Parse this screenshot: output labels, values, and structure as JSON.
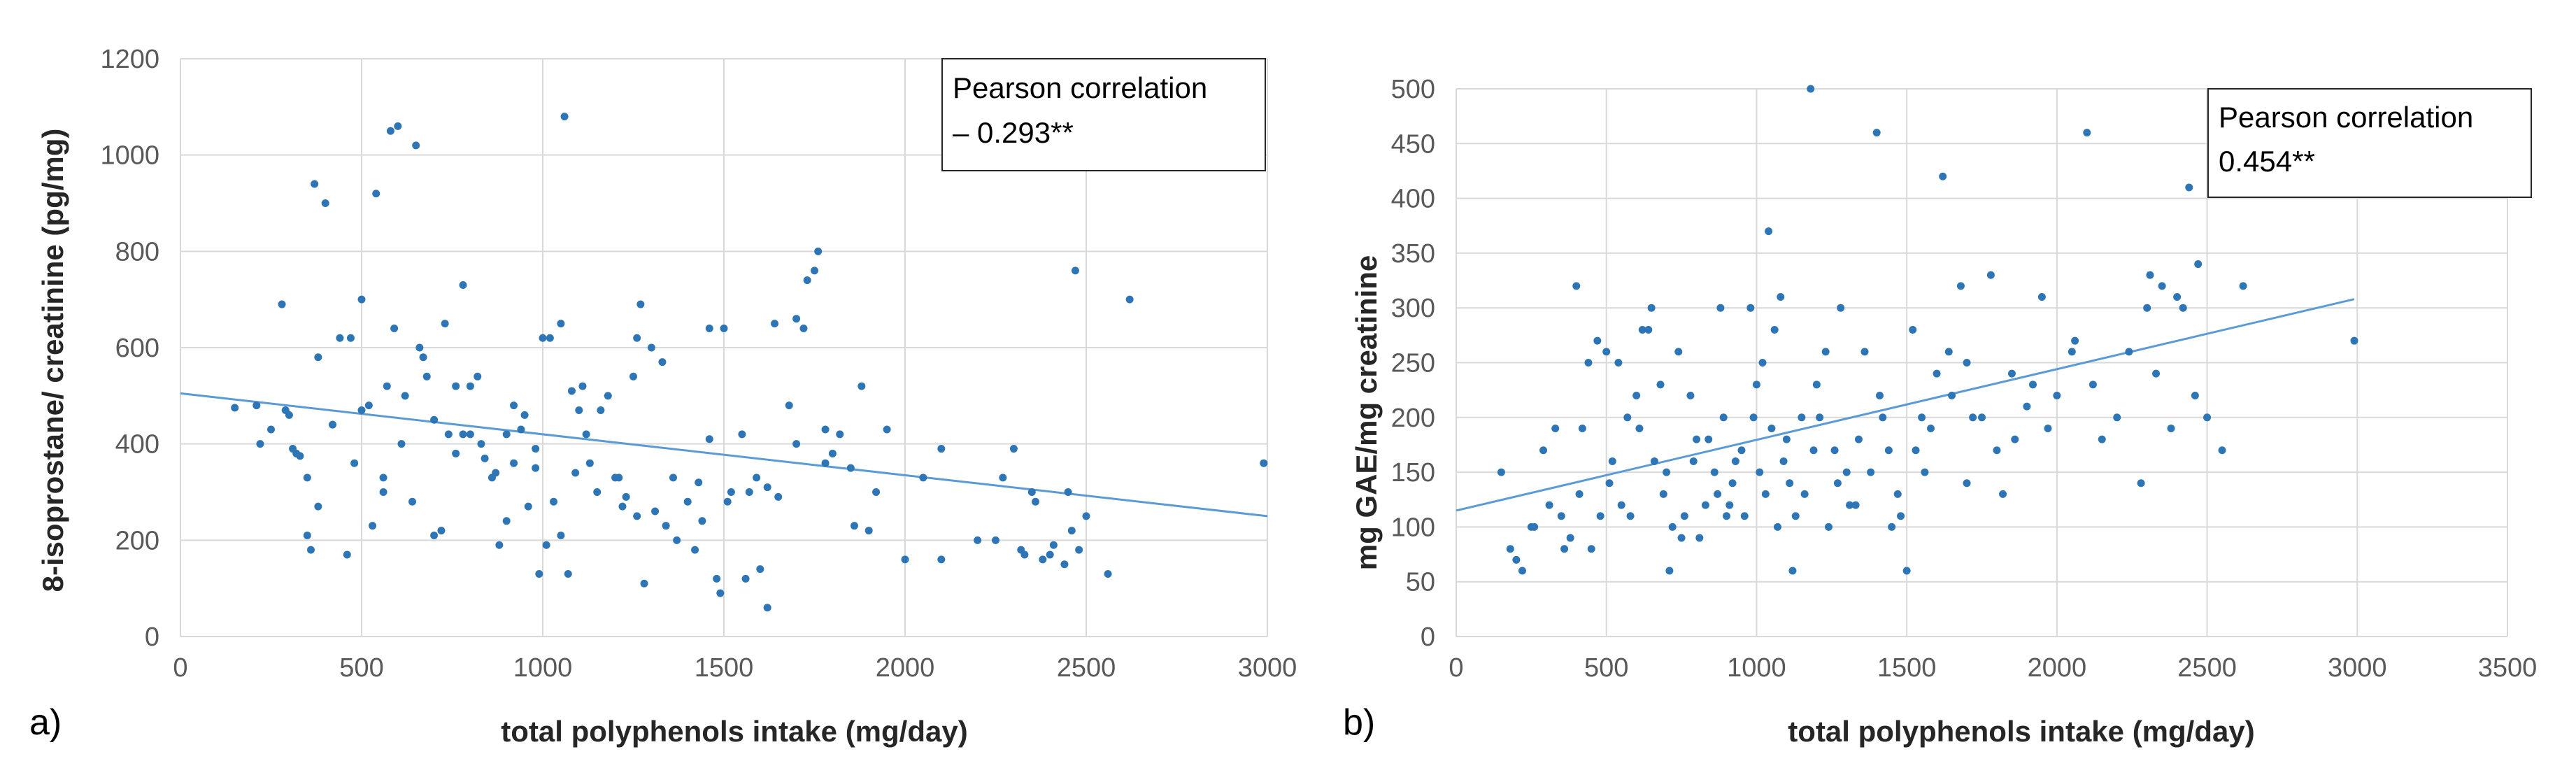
{
  "figure": {
    "point_color": "#2e75b6",
    "line_color": "#5b9bd5"
  },
  "chart_data": [
    {
      "type": "scatter",
      "panel_label": "a)",
      "title": "",
      "xlabel": "total polyphenols intake (mg/day)",
      "ylabel": "8-isoprostane/ creatinine (pg/mg)",
      "xlim": [
        0,
        3000
      ],
      "ylim": [
        0,
        1200
      ],
      "xticks": [
        "0",
        "500",
        "1000",
        "1500",
        "2000",
        "2500",
        "3000"
      ],
      "yticks": [
        "0",
        "200",
        "400",
        "600",
        "800",
        "1000",
        "1200"
      ],
      "grid": true,
      "annotation": {
        "line1": "Pearson correlation",
        "line2": "– 0.293**",
        "position": "top-right"
      },
      "trendline": {
        "x": [
          0,
          3000
        ],
        "y": [
          505,
          250
        ]
      },
      "points": [
        [
          150,
          475
        ],
        [
          210,
          480
        ],
        [
          220,
          400
        ],
        [
          280,
          690
        ],
        [
          300,
          460
        ],
        [
          310,
          390
        ],
        [
          330,
          375
        ],
        [
          350,
          330
        ],
        [
          360,
          180
        ],
        [
          380,
          580
        ],
        [
          370,
          940
        ],
        [
          400,
          900
        ],
        [
          420,
          440
        ],
        [
          440,
          620
        ],
        [
          470,
          620
        ],
        [
          480,
          360
        ],
        [
          500,
          700
        ],
        [
          520,
          480
        ],
        [
          540,
          920
        ],
        [
          560,
          300
        ],
        [
          570,
          520
        ],
        [
          580,
          1050
        ],
        [
          600,
          1060
        ],
        [
          610,
          400
        ],
        [
          650,
          1020
        ],
        [
          660,
          600
        ],
        [
          680,
          540
        ],
        [
          700,
          450
        ],
        [
          720,
          220
        ],
        [
          740,
          420
        ],
        [
          760,
          380
        ],
        [
          780,
          730
        ],
        [
          800,
          420
        ],
        [
          830,
          400
        ],
        [
          860,
          330
        ],
        [
          900,
          420
        ],
        [
          920,
          480
        ],
        [
          950,
          460
        ],
        [
          980,
          390
        ],
        [
          1000,
          620
        ],
        [
          1020,
          620
        ],
        [
          1050,
          650
        ],
        [
          1060,
          1080
        ],
        [
          1080,
          510
        ],
        [
          1100,
          470
        ],
        [
          1120,
          420
        ],
        [
          1150,
          300
        ],
        [
          1200,
          330
        ],
        [
          1220,
          270
        ],
        [
          1250,
          540
        ],
        [
          1260,
          620
        ],
        [
          1270,
          690
        ],
        [
          1300,
          600
        ],
        [
          1330,
          570
        ],
        [
          1360,
          330
        ],
        [
          1400,
          280
        ],
        [
          1420,
          180
        ],
        [
          1440,
          240
        ],
        [
          1460,
          640
        ],
        [
          1480,
          120
        ],
        [
          1500,
          640
        ],
        [
          1520,
          300
        ],
        [
          1550,
          420
        ],
        [
          1570,
          300
        ],
        [
          1600,
          140
        ],
        [
          1620,
          60
        ],
        [
          1640,
          650
        ],
        [
          1680,
          480
        ],
        [
          1700,
          400
        ],
        [
          1730,
          740
        ],
        [
          1750,
          760
        ],
        [
          1760,
          800
        ],
        [
          1780,
          430
        ],
        [
          1800,
          380
        ],
        [
          1850,
          350
        ],
        [
          1880,
          520
        ],
        [
          1920,
          300
        ],
        [
          2000,
          160
        ],
        [
          2050,
          330
        ],
        [
          2100,
          390
        ],
        [
          2200,
          200
        ],
        [
          2270,
          330
        ],
        [
          2300,
          390
        ],
        [
          2320,
          180
        ],
        [
          2350,
          300
        ],
        [
          2380,
          160
        ],
        [
          2400,
          170
        ],
        [
          2450,
          300
        ],
        [
          2470,
          760
        ],
        [
          2480,
          180
        ],
        [
          2500,
          250
        ],
        [
          2560,
          130
        ],
        [
          2620,
          700
        ],
        [
          2990,
          360
        ],
        [
          250,
          430
        ],
        [
          290,
          470
        ],
        [
          320,
          380
        ],
        [
          350,
          210
        ],
        [
          380,
          270
        ],
        [
          420,
          440
        ],
        [
          460,
          170
        ],
        [
          500,
          470
        ],
        [
          530,
          230
        ],
        [
          560,
          330
        ],
        [
          590,
          640
        ],
        [
          620,
          500
        ],
        [
          640,
          280
        ],
        [
          670,
          580
        ],
        [
          700,
          210
        ],
        [
          730,
          650
        ],
        [
          760,
          520
        ],
        [
          780,
          420
        ],
        [
          800,
          520
        ],
        [
          820,
          540
        ],
        [
          840,
          370
        ],
        [
          870,
          340
        ],
        [
          880,
          190
        ],
        [
          900,
          240
        ],
        [
          920,
          360
        ],
        [
          940,
          430
        ],
        [
          960,
          270
        ],
        [
          980,
          350
        ],
        [
          990,
          130
        ],
        [
          1010,
          190
        ],
        [
          1030,
          280
        ],
        [
          1050,
          210
        ],
        [
          1070,
          130
        ],
        [
          1090,
          340
        ],
        [
          1110,
          520
        ],
        [
          1130,
          360
        ],
        [
          1160,
          470
        ],
        [
          1180,
          500
        ],
        [
          1210,
          330
        ],
        [
          1230,
          290
        ],
        [
          1260,
          250
        ],
        [
          1280,
          110
        ],
        [
          1310,
          260
        ],
        [
          1340,
          230
        ],
        [
          1370,
          200
        ],
        [
          1430,
          320
        ],
        [
          1460,
          410
        ],
        [
          1490,
          90
        ],
        [
          1510,
          280
        ],
        [
          1560,
          120
        ],
        [
          1590,
          330
        ],
        [
          1620,
          310
        ],
        [
          1650,
          290
        ],
        [
          1700,
          660
        ],
        [
          1720,
          640
        ],
        [
          1780,
          360
        ],
        [
          1820,
          420
        ],
        [
          1860,
          230
        ],
        [
          1900,
          220
        ],
        [
          1950,
          430
        ],
        [
          2100,
          160
        ],
        [
          2250,
          200
        ],
        [
          2330,
          170
        ],
        [
          2360,
          280
        ],
        [
          2410,
          190
        ],
        [
          2440,
          150
        ],
        [
          2460,
          220
        ]
      ]
    },
    {
      "type": "scatter",
      "panel_label": "b)",
      "title": "",
      "xlabel": "total polyphenols intake (mg/day)",
      "ylabel": "mg GAE/mg creatinine",
      "xlim": [
        0,
        3500
      ],
      "ylim": [
        0,
        500
      ],
      "xticks": [
        "0",
        "500",
        "1000",
        "1500",
        "2000",
        "2500",
        "3000",
        "3500"
      ],
      "yticks": [
        "0",
        "50",
        "100",
        "150",
        "200",
        "250",
        "300",
        "350",
        "400",
        "450",
        "500"
      ],
      "grid": true,
      "annotation": {
        "line1": "Pearson correlation",
        "line2": "0.454**",
        "position": "top-right"
      },
      "trendline": {
        "x": [
          0,
          2990
        ],
        "y": [
          115,
          308
        ]
      },
      "points": [
        [
          150,
          150
        ],
        [
          180,
          80
        ],
        [
          200,
          70
        ],
        [
          220,
          60
        ],
        [
          250,
          100
        ],
        [
          290,
          170
        ],
        [
          310,
          120
        ],
        [
          350,
          110
        ],
        [
          380,
          90
        ],
        [
          400,
          320
        ],
        [
          420,
          190
        ],
        [
          440,
          250
        ],
        [
          470,
          270
        ],
        [
          500,
          260
        ],
        [
          520,
          160
        ],
        [
          550,
          120
        ],
        [
          570,
          200
        ],
        [
          600,
          220
        ],
        [
          620,
          280
        ],
        [
          650,
          300
        ],
        [
          680,
          230
        ],
        [
          700,
          150
        ],
        [
          720,
          100
        ],
        [
          750,
          90
        ],
        [
          780,
          220
        ],
        [
          800,
          180
        ],
        [
          830,
          120
        ],
        [
          860,
          150
        ],
        [
          880,
          300
        ],
        [
          900,
          110
        ],
        [
          920,
          140
        ],
        [
          950,
          170
        ],
        [
          980,
          300
        ],
        [
          1000,
          230
        ],
        [
          1020,
          250
        ],
        [
          1040,
          370
        ],
        [
          1060,
          280
        ],
        [
          1080,
          310
        ],
        [
          1100,
          180
        ],
        [
          1120,
          60
        ],
        [
          1150,
          200
        ],
        [
          1180,
          500
        ],
        [
          1200,
          230
        ],
        [
          1230,
          260
        ],
        [
          1260,
          170
        ],
        [
          1280,
          300
        ],
        [
          1300,
          150
        ],
        [
          1330,
          120
        ],
        [
          1360,
          260
        ],
        [
          1400,
          460
        ],
        [
          1420,
          200
        ],
        [
          1450,
          100
        ],
        [
          1480,
          110
        ],
        [
          1500,
          60
        ],
        [
          1520,
          280
        ],
        [
          1550,
          200
        ],
        [
          1580,
          190
        ],
        [
          1620,
          420
        ],
        [
          1650,
          220
        ],
        [
          1680,
          320
        ],
        [
          1700,
          140
        ],
        [
          1750,
          200
        ],
        [
          1780,
          330
        ],
        [
          1820,
          130
        ],
        [
          1850,
          240
        ],
        [
          1900,
          210
        ],
        [
          1950,
          310
        ],
        [
          2000,
          220
        ],
        [
          2050,
          260
        ],
        [
          2100,
          460
        ],
        [
          2150,
          180
        ],
        [
          2200,
          200
        ],
        [
          2280,
          140
        ],
        [
          2300,
          300
        ],
        [
          2330,
          240
        ],
        [
          2350,
          320
        ],
        [
          2380,
          190
        ],
        [
          2400,
          310
        ],
        [
          2440,
          410
        ],
        [
          2460,
          220
        ],
        [
          2500,
          200
        ],
        [
          2550,
          170
        ],
        [
          2620,
          320
        ],
        [
          2990,
          270
        ],
        [
          260,
          100
        ],
        [
          330,
          190
        ],
        [
          360,
          80
        ],
        [
          410,
          130
        ],
        [
          450,
          80
        ],
        [
          480,
          110
        ],
        [
          510,
          140
        ],
        [
          540,
          250
        ],
        [
          580,
          110
        ],
        [
          610,
          190
        ],
        [
          640,
          280
        ],
        [
          660,
          160
        ],
        [
          690,
          130
        ],
        [
          710,
          60
        ],
        [
          740,
          260
        ],
        [
          760,
          110
        ],
        [
          790,
          160
        ],
        [
          810,
          90
        ],
        [
          840,
          180
        ],
        [
          870,
          130
        ],
        [
          890,
          200
        ],
        [
          910,
          120
        ],
        [
          930,
          160
        ],
        [
          960,
          110
        ],
        [
          990,
          200
        ],
        [
          1010,
          150
        ],
        [
          1030,
          130
        ],
        [
          1050,
          190
        ],
        [
          1070,
          100
        ],
        [
          1090,
          160
        ],
        [
          1110,
          140
        ],
        [
          1130,
          110
        ],
        [
          1160,
          130
        ],
        [
          1190,
          170
        ],
        [
          1210,
          200
        ],
        [
          1240,
          100
        ],
        [
          1270,
          140
        ],
        [
          1310,
          120
        ],
        [
          1340,
          180
        ],
        [
          1380,
          150
        ],
        [
          1410,
          220
        ],
        [
          1440,
          170
        ],
        [
          1470,
          130
        ],
        [
          1530,
          170
        ],
        [
          1560,
          150
        ],
        [
          1600,
          240
        ],
        [
          1640,
          260
        ],
        [
          1700,
          250
        ],
        [
          1720,
          200
        ],
        [
          1800,
          170
        ],
        [
          1860,
          180
        ],
        [
          1920,
          230
        ],
        [
          1970,
          190
        ],
        [
          2060,
          270
        ],
        [
          2120,
          230
        ],
        [
          2240,
          260
        ],
        [
          2310,
          330
        ],
        [
          2420,
          300
        ],
        [
          2470,
          340
        ]
      ]
    }
  ]
}
